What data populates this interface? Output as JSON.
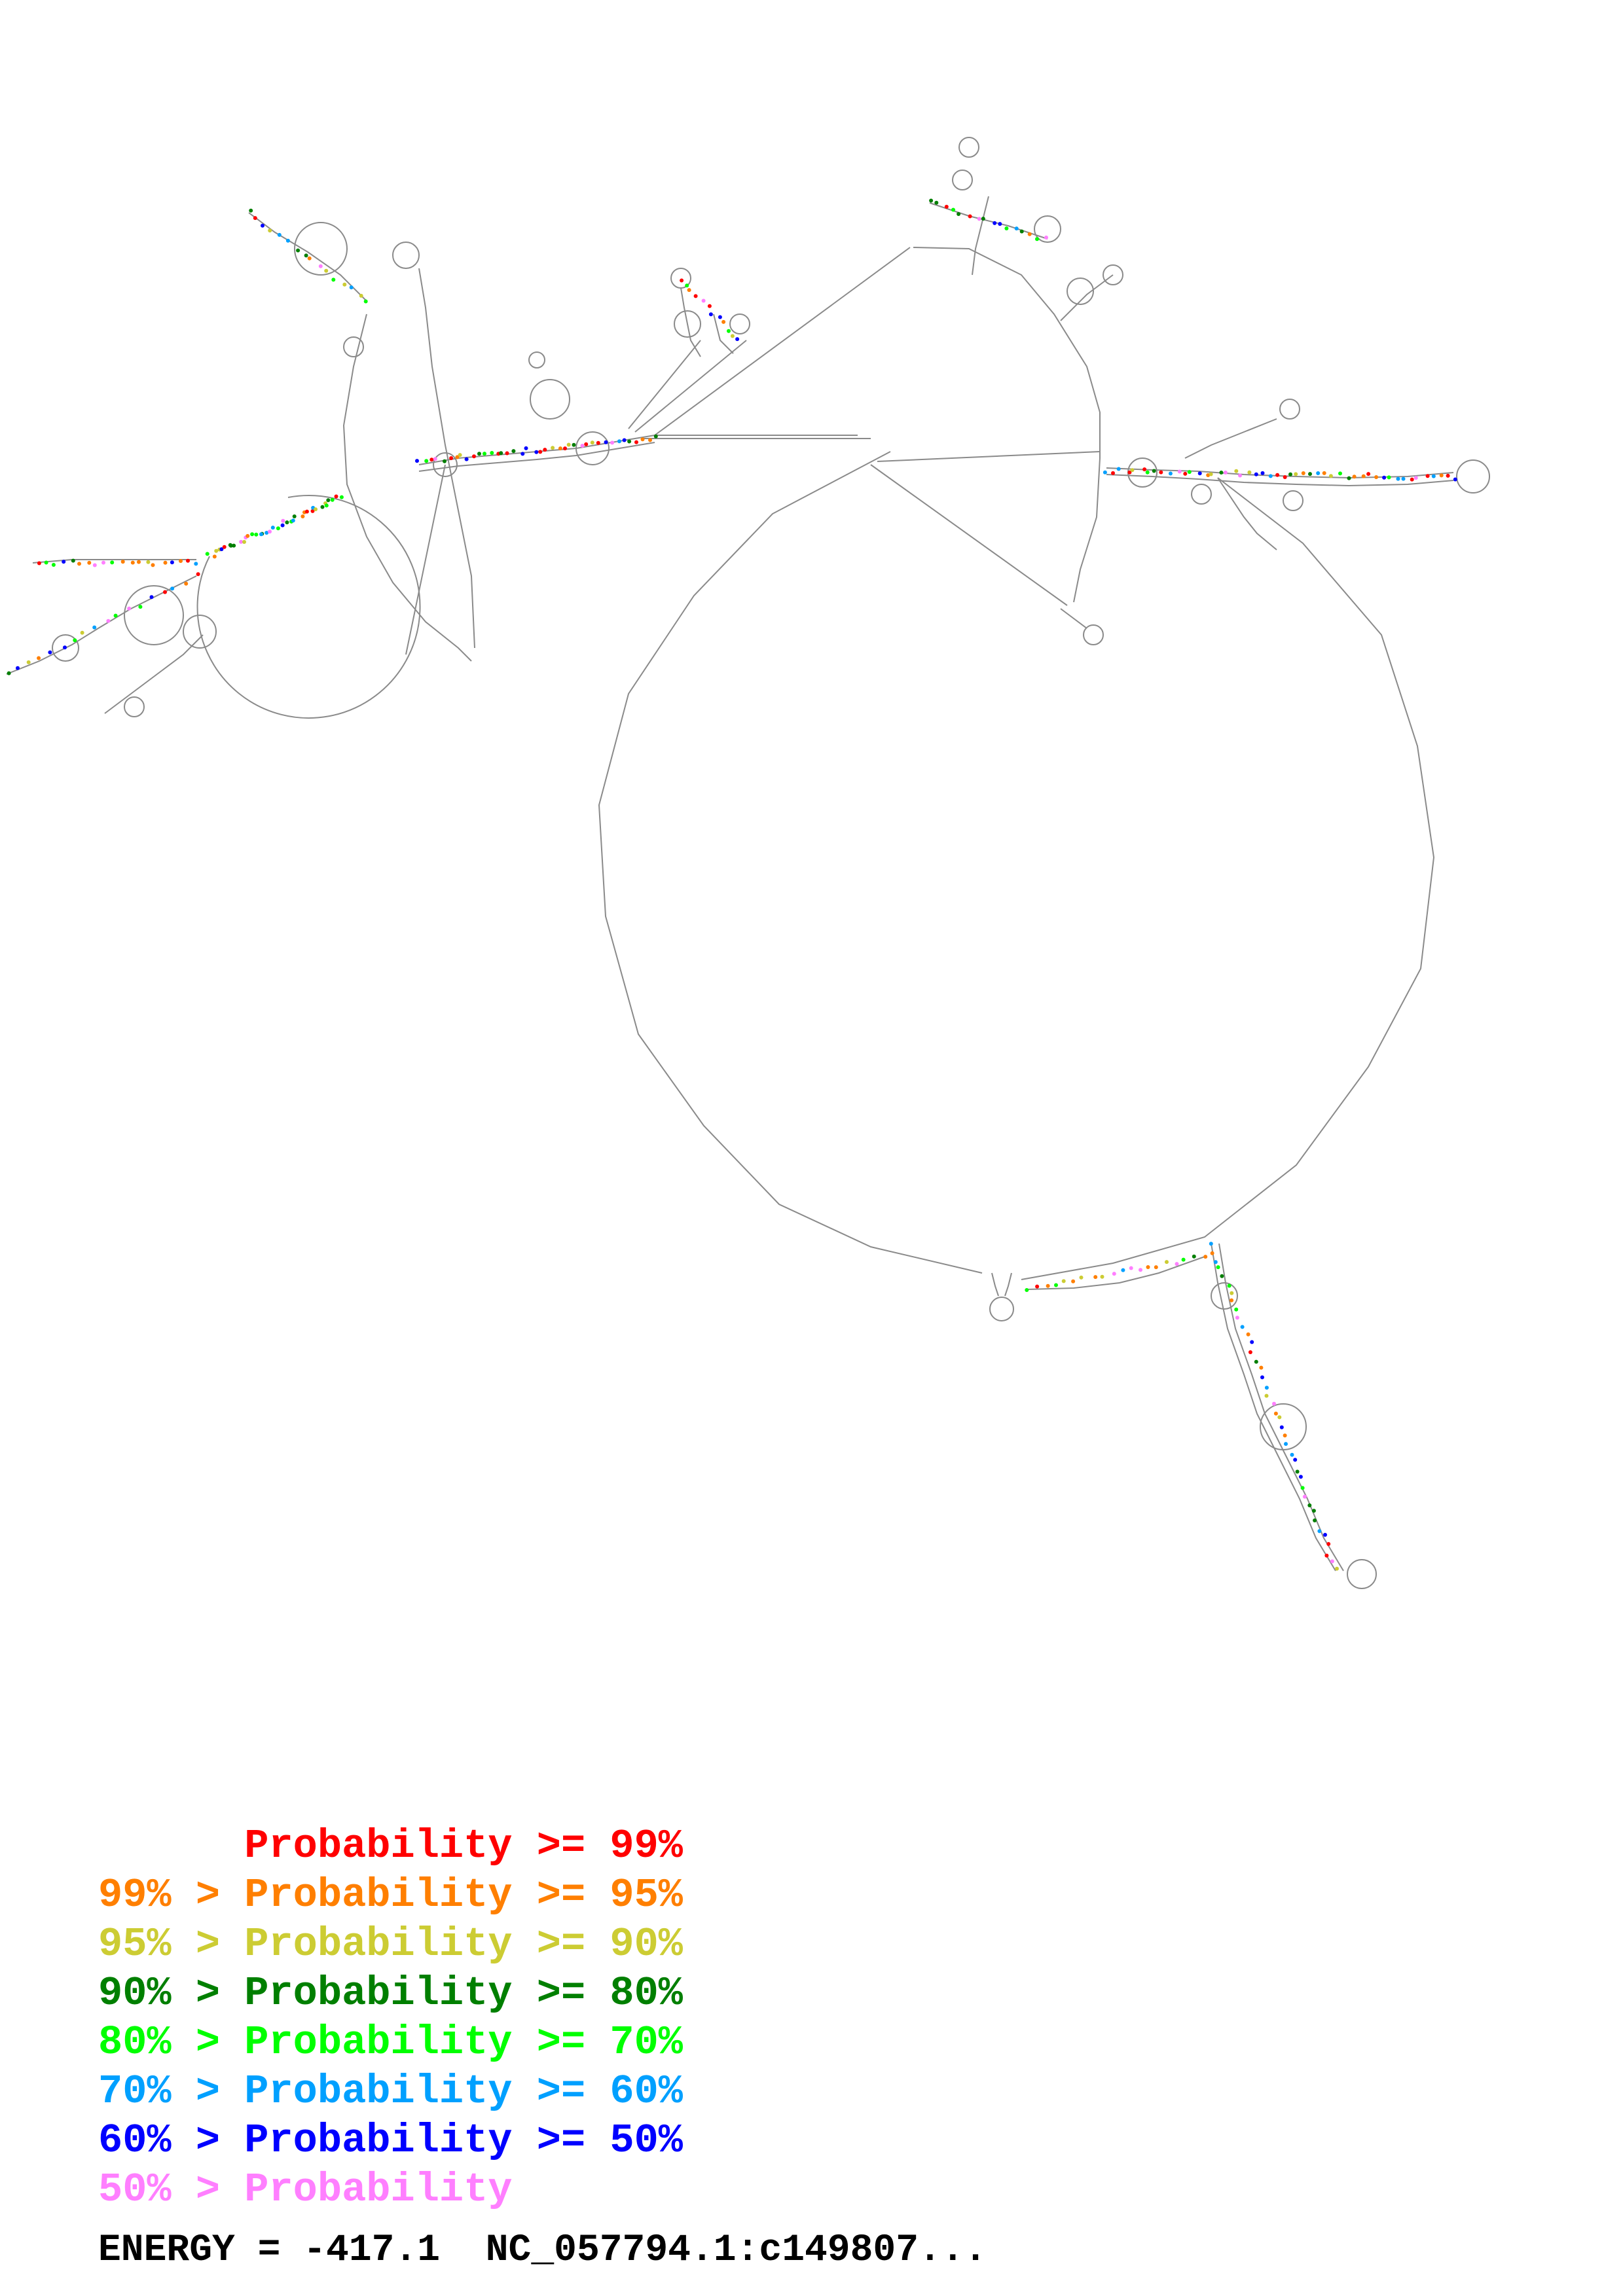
{
  "legend": {
    "rows": [
      {
        "prefix": "",
        "label": "Probability",
        "suffix": ">= 99%",
        "color": "#ff0000"
      },
      {
        "prefix": "99% >",
        "label": "Probability",
        "suffix": ">= 95%",
        "color": "#ff7f00"
      },
      {
        "prefix": "95% >",
        "label": "Probability",
        "suffix": ">= 90%",
        "color": "#cccc33"
      },
      {
        "prefix": "90% >",
        "label": "Probability",
        "suffix": ">= 80%",
        "color": "#007f00"
      },
      {
        "prefix": "80% >",
        "label": "Probability",
        "suffix": ">= 70%",
        "color": "#00ff00"
      },
      {
        "prefix": "70% >",
        "label": "Probability",
        "suffix": ">= 60%",
        "color": "#00a0ff"
      },
      {
        "prefix": "60% >",
        "label": "Probability",
        "suffix": ">= 50%",
        "color": "#0000ff"
      },
      {
        "prefix": "50% >",
        "label": "Probability",
        "suffix": "",
        "color": "#ff7fff"
      }
    ]
  },
  "footer": {
    "energy_label": "ENERGY = -417.1",
    "sequence_id": "NC_057794.1:c149807..."
  },
  "colors": {
    "backbone": "#8a8a8a",
    "text": "#000000",
    "background": "#ffffff"
  }
}
